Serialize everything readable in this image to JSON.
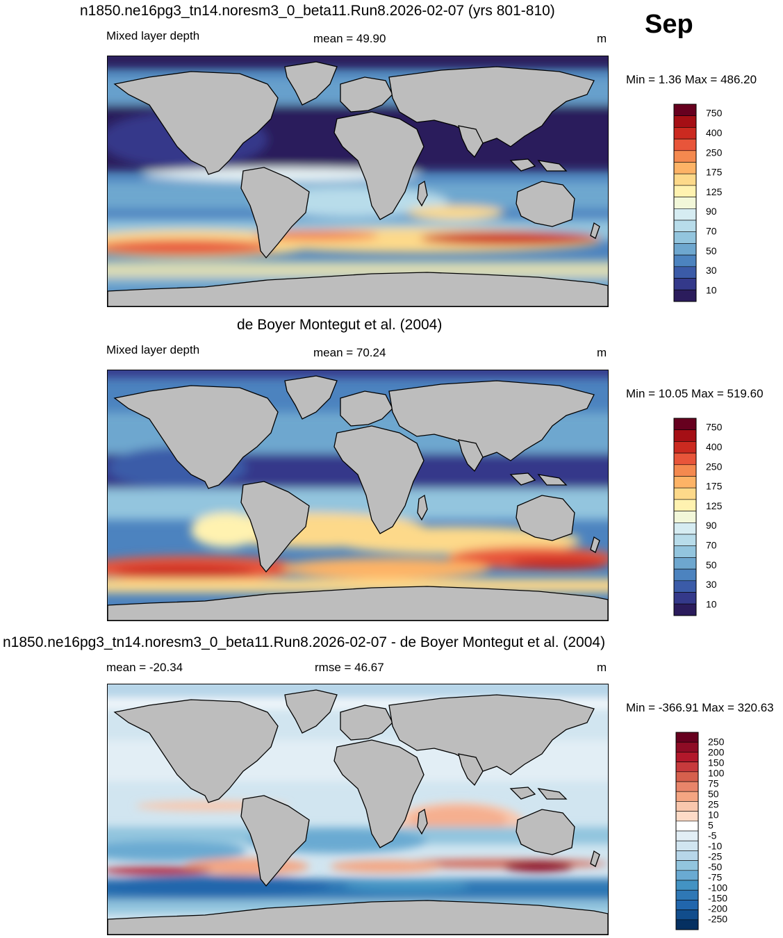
{
  "month": "Sep",
  "panels": [
    {
      "title": "n1850.ne16pg3_tn14.noresm3_0_beta11.Run8.2026-02-07 (yrs 801-810)",
      "left_label": "Mixed layer depth",
      "center_label": "mean =  49.90",
      "units": "m",
      "minmax": "Min =    1.36 Max = 486.20"
    },
    {
      "title": "de Boyer Montegut et al. (2004)",
      "left_label": "Mixed layer depth",
      "center_label": "mean =  70.24",
      "units": "m",
      "minmax": "Min =  10.05 Max = 519.60"
    },
    {
      "title": "n1850.ne16pg3_tn14.noresm3_0_beta11.Run8.2026-02-07 - de Boyer Montegut et al. (2004)",
      "left_label": "mean = -20.34",
      "center_label": "rmse =  46.67",
      "units": "m",
      "minmax": "Min = -366.91 Max = 320.63"
    }
  ],
  "colorbar_abs": {
    "labels": [
      "750",
      "400",
      "250",
      "175",
      "125",
      "90",
      "70",
      "50",
      "30",
      "10"
    ],
    "colors": [
      "#67001f",
      "#a50f15",
      "#cb2a20",
      "#e8553a",
      "#f4894f",
      "#fdb366",
      "#fdd98a",
      "#fff2b0",
      "#f2f7d9",
      "#d6ecf2",
      "#b8dcea",
      "#93c5de",
      "#6ea7cf",
      "#4c83bf",
      "#3b5ba8",
      "#34398a",
      "#2b1c5c"
    ]
  },
  "colorbar_diff": {
    "labels": [
      "250",
      "200",
      "150",
      "100",
      "75",
      "50",
      "25",
      "10",
      "5",
      "-5",
      "-10",
      "-25",
      "-50",
      "-75",
      "-100",
      "-150",
      "-200",
      "-250"
    ],
    "colors": [
      "#67001f",
      "#8e0c25",
      "#b2182b",
      "#c73a3c",
      "#d6604d",
      "#e8856a",
      "#f4a582",
      "#f9c7ad",
      "#fddbc7",
      "#ffffff",
      "#e2eef5",
      "#d1e5f0",
      "#b7d6e9",
      "#92c5de",
      "#6aaad2",
      "#4393c3",
      "#2f78b5",
      "#2166ac",
      "#114d8c",
      "#053061"
    ]
  },
  "chart_data": [
    {
      "type": "heatmap",
      "title": "n1850.ne16pg3_tn14.noresm3_0_beta11.Run8.2026-02-07 (yrs 801-810)",
      "variable": "Mixed layer depth",
      "units": "m",
      "mean": 49.9,
      "min": 1.36,
      "max": 486.2,
      "colorbar_levels": [
        10,
        30,
        50,
        70,
        90,
        125,
        175,
        250,
        400,
        750
      ]
    },
    {
      "type": "heatmap",
      "title": "de Boyer Montegut et al. (2004)",
      "variable": "Mixed layer depth",
      "units": "m",
      "mean": 70.24,
      "min": 10.05,
      "max": 519.6,
      "colorbar_levels": [
        10,
        30,
        50,
        70,
        90,
        125,
        175,
        250,
        400,
        750
      ]
    },
    {
      "type": "heatmap",
      "title": "n1850.ne16pg3_tn14.noresm3_0_beta11.Run8.2026-02-07 - de Boyer Montegut et al. (2004)",
      "units": "m",
      "mean": -20.34,
      "rmse": 46.67,
      "min": -366.91,
      "max": 320.63,
      "colorbar_levels": [
        -250,
        -200,
        -150,
        -100,
        -75,
        -50,
        -25,
        -10,
        -5,
        5,
        10,
        25,
        50,
        75,
        100,
        150,
        200,
        250
      ]
    }
  ]
}
